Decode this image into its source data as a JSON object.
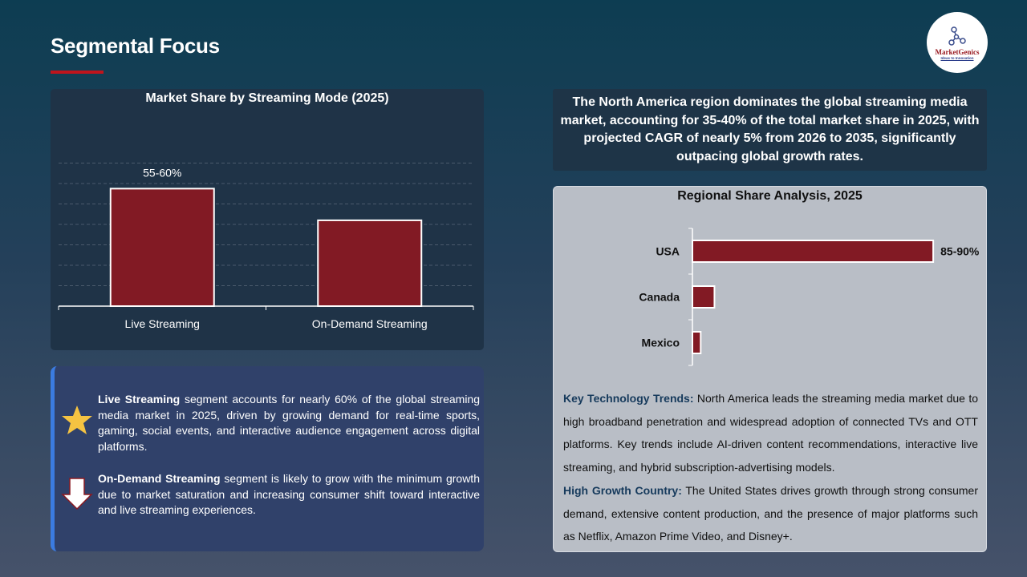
{
  "header": {
    "title": "Segmental Focus"
  },
  "logo": {
    "name": "MarketGenics",
    "tagline": "Ideas to Innovation"
  },
  "colors": {
    "bar": "#821a24",
    "accent": "#c0141c",
    "star": "#f5c342"
  },
  "chart_data": [
    {
      "type": "bar",
      "title": "Market Share by Streaming Mode (2025)",
      "categories": [
        "Live Streaming",
        "On-Demand Streaming"
      ],
      "values": [
        57.5,
        42
      ],
      "data_labels": [
        "55-60%",
        ""
      ],
      "ylim": [
        0,
        70
      ],
      "grid": true,
      "xlabel": "",
      "ylabel": ""
    },
    {
      "type": "bar",
      "orientation": "horizontal",
      "title": "Regional Share Analysis, 2025",
      "categories": [
        "USA",
        "Canada",
        "Mexico"
      ],
      "values": [
        87.5,
        8,
        3
      ],
      "data_labels": [
        "85-90%",
        "",
        ""
      ],
      "xlim": [
        0,
        100
      ],
      "grid": false
    }
  ],
  "segments": [
    {
      "icon": "star-icon",
      "bold": "Live Streaming",
      "text": " segment accounts for nearly 60% of the global streaming media market in 2025, driven by growing demand for real-time sports, gaming, social events, and interactive audience engagement across digital platforms."
    },
    {
      "icon": "arrow-down-icon",
      "bold": "On-Demand Streaming",
      "text": " segment is likely to grow with the minimum growth due to market saturation and increasing consumer shift toward interactive and live streaming experiences."
    }
  ],
  "summary": "The North America region dominates the global streaming media market, accounting for 35-40% of the total market share in 2025, with projected CAGR of nearly 5% from 2026 to 2035, significantly outpacing global growth rates.",
  "trends": [
    {
      "label": "Key Technology Trends:",
      "text": " North America leads the streaming media market due to high broadband penetration and widespread adoption of connected TVs and OTT platforms. Key trends include AI-driven content recommendations, interactive live streaming, and hybrid subscription-advertising models."
    },
    {
      "label": "High Growth Country:",
      "text": " The United States drives growth through strong consumer demand, extensive content production, and the presence of major platforms such as Netflix, Amazon Prime Video, and Disney+."
    }
  ]
}
